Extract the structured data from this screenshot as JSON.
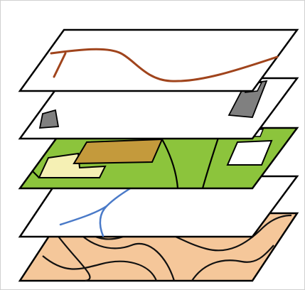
{
  "figure": {
    "layers": [
      {
        "id": "routes",
        "feature": "route-line",
        "feature_color": "#a0441c",
        "plane_color": "#ffffff"
      },
      {
        "id": "buildings",
        "feature": "building-polygons",
        "feature_color": "#808080",
        "plane_color": "#ffffff"
      },
      {
        "id": "land-use",
        "feature": "land-parcels",
        "feature_color": "#8cc43c",
        "accent_colors": [
          "#c49a3c",
          "#f5f0b4"
        ]
      },
      {
        "id": "hydrology",
        "feature": "river-network",
        "feature_color": "#4a7ac8",
        "plane_color": "#ffffff"
      },
      {
        "id": "elevation",
        "feature": "contour-lines",
        "feature_color": "#000000",
        "plane_color": "#f5c79a"
      }
    ],
    "outline_color": "#000000"
  }
}
